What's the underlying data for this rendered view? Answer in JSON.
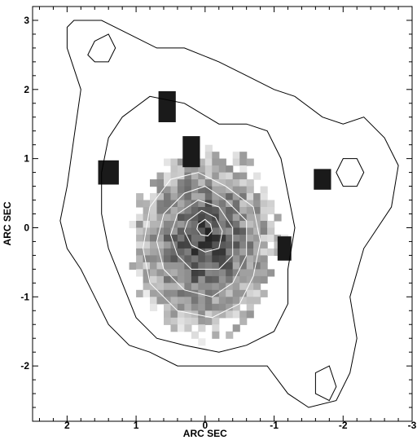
{
  "chart_data": {
    "type": "heatmap",
    "description_kind": "greyscale image with overlaid contours",
    "xlabel": "ARC SEC",
    "ylabel": "ARC SEC",
    "xlim": [
      2.5,
      -3.0
    ],
    "ylim": [
      -2.8,
      3.2
    ],
    "x_ticks": [
      2,
      1,
      0,
      -1,
      -2,
      -3
    ],
    "y_ticks": [
      -2,
      -1,
      0,
      1,
      2,
      3
    ],
    "x_tick_labels": [
      "2",
      "1",
      "0",
      "-1",
      "-2",
      "-3"
    ],
    "y_tick_labels": [
      "-2",
      "-1",
      "0",
      "1",
      "2",
      "3"
    ],
    "grid": false,
    "legend": "none",
    "colors": {
      "contour_outer": "#000000",
      "contour_inner": "#ffffff",
      "grey_dark": "#1a1a1a",
      "grey_light": "#d9d9d9"
    },
    "image_peak": [
      0.05,
      0.05
    ],
    "outer_contours": [
      {
        "level": 1,
        "points": [
          [
            1.9,
            3.0
          ],
          [
            1.5,
            3.0
          ],
          [
            1.1,
            2.8
          ],
          [
            0.7,
            2.6
          ],
          [
            0.3,
            2.6
          ],
          [
            -0.2,
            2.4
          ],
          [
            -0.6,
            2.2
          ],
          [
            -1.0,
            2.0
          ],
          [
            -1.3,
            1.9
          ],
          [
            -1.7,
            1.6
          ],
          [
            -2.0,
            1.5
          ],
          [
            -2.3,
            1.6
          ],
          [
            -2.6,
            1.3
          ],
          [
            -2.8,
            0.9
          ],
          [
            -2.7,
            0.3
          ],
          [
            -2.3,
            -0.3
          ],
          [
            -2.1,
            -1.0
          ],
          [
            -2.2,
            -1.6
          ],
          [
            -2.1,
            -2.1
          ],
          [
            -1.9,
            -2.5
          ],
          [
            -1.5,
            -2.6
          ],
          [
            -1.2,
            -2.4
          ],
          [
            -0.9,
            -2.0
          ],
          [
            -0.5,
            -2.0
          ],
          [
            0.0,
            -2.0
          ],
          [
            0.4,
            -2.0
          ],
          [
            0.8,
            -1.8
          ],
          [
            1.1,
            -1.7
          ],
          [
            1.4,
            -1.4
          ],
          [
            1.6,
            -1.0
          ],
          [
            1.8,
            -0.6
          ],
          [
            2.0,
            -0.3
          ],
          [
            2.1,
            0.1
          ],
          [
            2.0,
            0.6
          ],
          [
            1.9,
            1.3
          ],
          [
            1.8,
            2.0
          ],
          [
            2.0,
            2.6
          ],
          [
            2.0,
            2.9
          ]
        ]
      },
      {
        "level": 2,
        "points": [
          [
            1.2,
            1.6
          ],
          [
            0.8,
            1.9
          ],
          [
            0.3,
            1.8
          ],
          [
            -0.2,
            1.5
          ],
          [
            -0.6,
            1.5
          ],
          [
            -0.9,
            1.4
          ],
          [
            -1.1,
            1.0
          ],
          [
            -1.2,
            0.5
          ],
          [
            -1.3,
            0.0
          ],
          [
            -1.2,
            -0.6
          ],
          [
            -1.2,
            -1.1
          ],
          [
            -1.0,
            -1.5
          ],
          [
            -0.6,
            -1.7
          ],
          [
            -0.2,
            -1.8
          ],
          [
            0.3,
            -1.7
          ],
          [
            0.7,
            -1.6
          ],
          [
            1.0,
            -1.3
          ],
          [
            1.2,
            -0.8
          ],
          [
            1.4,
            -0.3
          ],
          [
            1.5,
            0.2
          ],
          [
            1.5,
            0.8
          ],
          [
            1.4,
            1.3
          ]
        ]
      },
      {
        "level": 3,
        "points": [
          [
            1.6,
            2.7
          ],
          [
            1.4,
            2.8
          ],
          [
            1.3,
            2.6
          ],
          [
            1.4,
            2.4
          ],
          [
            1.6,
            2.4
          ],
          [
            1.7,
            2.5
          ]
        ]
      },
      {
        "level": 4,
        "points": [
          [
            -2.2,
            1.0
          ],
          [
            -2.3,
            0.8
          ],
          [
            -2.2,
            0.6
          ],
          [
            -2.0,
            0.6
          ],
          [
            -1.9,
            0.8
          ],
          [
            -2.0,
            1.0
          ]
        ]
      },
      {
        "level": 5,
        "points": [
          [
            -1.6,
            -2.1
          ],
          [
            -1.8,
            -2.0
          ],
          [
            -1.9,
            -2.3
          ],
          [
            -1.8,
            -2.5
          ],
          [
            -1.6,
            -2.4
          ]
        ]
      }
    ],
    "inner_contours": [
      {
        "level": 1,
        "points": [
          [
            0.8,
            0.3
          ],
          [
            0.5,
            0.7
          ],
          [
            0.1,
            0.8
          ],
          [
            -0.3,
            0.6
          ],
          [
            -0.7,
            0.3
          ],
          [
            -0.8,
            -0.2
          ],
          [
            -0.7,
            -0.7
          ],
          [
            -0.5,
            -1.1
          ],
          [
            -0.1,
            -1.3
          ],
          [
            0.4,
            -1.2
          ],
          [
            0.8,
            -0.8
          ],
          [
            0.9,
            -0.3
          ]
        ]
      },
      {
        "level": 2,
        "points": [
          [
            0.6,
            0.2
          ],
          [
            0.3,
            0.5
          ],
          [
            0.0,
            0.6
          ],
          [
            -0.3,
            0.4
          ],
          [
            -0.6,
            0.1
          ],
          [
            -0.6,
            -0.4
          ],
          [
            -0.4,
            -0.8
          ],
          [
            -0.1,
            -1.0
          ],
          [
            0.3,
            -0.9
          ],
          [
            0.6,
            -0.6
          ],
          [
            0.7,
            -0.2
          ]
        ]
      },
      {
        "level": 3,
        "points": [
          [
            0.4,
            0.2
          ],
          [
            0.1,
            0.4
          ],
          [
            -0.2,
            0.3
          ],
          [
            -0.4,
            0.0
          ],
          [
            -0.4,
            -0.4
          ],
          [
            -0.2,
            -0.6
          ],
          [
            0.2,
            -0.6
          ],
          [
            0.4,
            -0.4
          ],
          [
            0.5,
            -0.1
          ]
        ]
      },
      {
        "level": 4,
        "points": [
          [
            0.25,
            0.1
          ],
          [
            0.05,
            0.25
          ],
          [
            -0.15,
            0.15
          ],
          [
            -0.25,
            -0.05
          ],
          [
            -0.2,
            -0.3
          ],
          [
            0.0,
            -0.35
          ],
          [
            0.2,
            -0.25
          ],
          [
            0.3,
            -0.05
          ]
        ]
      },
      {
        "level": 5,
        "points": [
          [
            0.1,
            0.05
          ],
          [
            0.0,
            0.12
          ],
          [
            -0.08,
            0.05
          ],
          [
            -0.1,
            -0.05
          ],
          [
            -0.04,
            -0.12
          ],
          [
            0.06,
            -0.1
          ],
          [
            0.12,
            -0.02
          ]
        ]
      }
    ],
    "dark_blobs": [
      {
        "x": 0.55,
        "y": 1.75,
        "w": 0.25,
        "h": 0.45
      },
      {
        "x": 0.2,
        "y": 1.1,
        "w": 0.25,
        "h": 0.45
      },
      {
        "x": 1.4,
        "y": 0.8,
        "w": 0.3,
        "h": 0.35
      },
      {
        "x": -1.15,
        "y": -0.3,
        "w": 0.2,
        "h": 0.35
      },
      {
        "x": -1.7,
        "y": 0.7,
        "w": 0.25,
        "h": 0.3
      }
    ]
  }
}
